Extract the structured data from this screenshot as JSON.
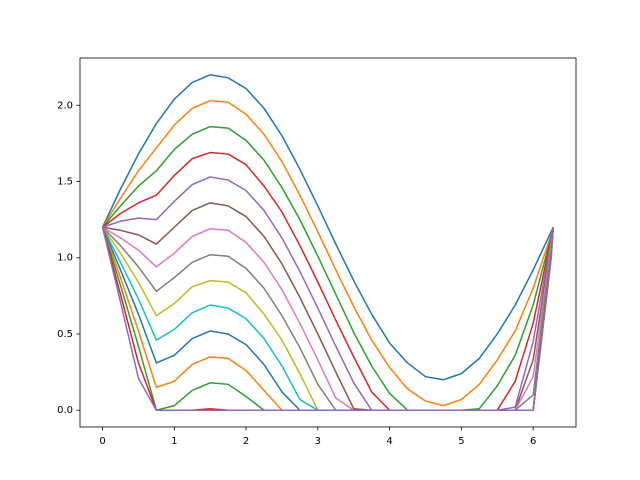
{
  "chart_data": {
    "type": "line",
    "x": [
      0,
      0.25,
      0.5,
      0.75,
      1,
      1.25,
      1.5,
      1.75,
      2,
      2.25,
      2.5,
      2.75,
      3,
      3.25,
      3.5,
      3.75,
      4,
      4.25,
      4.5,
      4.75,
      5,
      5.25,
      5.5,
      5.75,
      6,
      6.25,
      6.28
    ],
    "series": [
      {
        "color": "#1f77b4",
        "values": [
          1.2,
          1.45,
          1.68,
          1.88,
          2.04,
          2.15,
          2.2,
          2.18,
          2.11,
          1.98,
          1.8,
          1.58,
          1.34,
          1.09,
          0.85,
          0.63,
          0.44,
          0.31,
          0.22,
          0.2,
          0.24,
          0.34,
          0.5,
          0.69,
          0.92,
          1.17,
          1.2
        ]
      },
      {
        "color": "#ff7f0e",
        "values": [
          1.2,
          1.39,
          1.57,
          1.72,
          1.87,
          1.98,
          2.03,
          2.02,
          1.94,
          1.81,
          1.63,
          1.41,
          1.17,
          0.92,
          0.68,
          0.46,
          0.28,
          0.14,
          0.06,
          0.03,
          0.07,
          0.17,
          0.33,
          0.52,
          0.8,
          1.15,
          1.2
        ]
      },
      {
        "color": "#2ca02c",
        "values": [
          1.2,
          1.34,
          1.47,
          1.57,
          1.71,
          1.81,
          1.86,
          1.85,
          1.77,
          1.64,
          1.46,
          1.25,
          1.01,
          0.76,
          0.51,
          0.29,
          0.11,
          0,
          0,
          0,
          0,
          0.01,
          0.16,
          0.36,
          0.69,
          1.14,
          1.2
        ]
      },
      {
        "color": "#d62728",
        "values": [
          1.2,
          1.29,
          1.36,
          1.41,
          1.54,
          1.65,
          1.69,
          1.68,
          1.61,
          1.47,
          1.3,
          1.08,
          0.84,
          0.59,
          0.35,
          0.12,
          0,
          0,
          0,
          0,
          0,
          0,
          0,
          0.19,
          0.57,
          1.13,
          1.2
        ]
      },
      {
        "color": "#9467bd",
        "values": [
          1.2,
          1.24,
          1.26,
          1.25,
          1.37,
          1.48,
          1.53,
          1.51,
          1.44,
          1.31,
          1.13,
          0.91,
          0.67,
          0.42,
          0.18,
          0,
          0,
          0,
          0,
          0,
          0,
          0,
          0,
          0.02,
          0.45,
          1.12,
          1.2
        ]
      },
      {
        "color": "#8c564b",
        "values": [
          1.2,
          1.18,
          1.15,
          1.09,
          1.2,
          1.31,
          1.36,
          1.34,
          1.27,
          1.14,
          0.96,
          0.74,
          0.5,
          0.25,
          0.01,
          0,
          0,
          0,
          0,
          0,
          0,
          0,
          0,
          0,
          0.33,
          1.1,
          1.2
        ]
      },
      {
        "color": "#e377c2",
        "values": [
          1.2,
          1.13,
          1.05,
          0.94,
          1.03,
          1.14,
          1.19,
          1.18,
          1.1,
          0.97,
          0.79,
          0.57,
          0.33,
          0.08,
          0,
          0,
          0,
          0,
          0,
          0,
          0,
          0,
          0,
          0,
          0.22,
          1.09,
          1.2
        ]
      },
      {
        "color": "#7f7f7f",
        "values": [
          1.2,
          1.08,
          0.94,
          0.78,
          0.87,
          0.97,
          1.02,
          1.01,
          0.93,
          0.8,
          0.62,
          0.41,
          0.17,
          0,
          0,
          0,
          0,
          0,
          0,
          0,
          0,
          0,
          0,
          0,
          0.1,
          1.08,
          1.2
        ]
      },
      {
        "color": "#bcbd22",
        "values": [
          1.2,
          1.03,
          0.84,
          0.62,
          0.7,
          0.81,
          0.85,
          0.84,
          0.77,
          0.63,
          0.46,
          0.24,
          0,
          0,
          0,
          0,
          0,
          0,
          0,
          0,
          0,
          0,
          0,
          0,
          0,
          1.07,
          1.2
        ]
      },
      {
        "color": "#17becf",
        "values": [
          1.2,
          0.97,
          0.73,
          0.46,
          0.53,
          0.64,
          0.69,
          0.67,
          0.6,
          0.47,
          0.29,
          0.07,
          0,
          0,
          0,
          0,
          0,
          0,
          0,
          0,
          0,
          0,
          0,
          0,
          0,
          1.05,
          1.2
        ]
      },
      {
        "color": "#1f77b4",
        "values": [
          1.2,
          0.92,
          0.63,
          0.31,
          0.36,
          0.47,
          0.52,
          0.5,
          0.43,
          0.3,
          0.12,
          0,
          0,
          0,
          0,
          0,
          0,
          0,
          0,
          0,
          0,
          0,
          0,
          0,
          0,
          1.04,
          1.2
        ]
      },
      {
        "color": "#ff7f0e",
        "values": [
          1.2,
          0.87,
          0.52,
          0.15,
          0.19,
          0.3,
          0.35,
          0.34,
          0.26,
          0.13,
          0,
          0,
          0,
          0,
          0,
          0,
          0,
          0,
          0,
          0,
          0,
          0,
          0,
          0,
          0,
          1.03,
          1.2
        ]
      },
      {
        "color": "#2ca02c",
        "values": [
          1.2,
          0.82,
          0.42,
          0,
          0.03,
          0.13,
          0.18,
          0.17,
          0.09,
          0,
          0,
          0,
          0,
          0,
          0,
          0,
          0,
          0,
          0,
          0,
          0,
          0,
          0,
          0,
          0,
          1.02,
          1.2
        ]
      },
      {
        "color": "#d62728",
        "values": [
          1.2,
          0.76,
          0.31,
          0,
          0,
          0,
          0.01,
          0,
          0,
          0,
          0,
          0,
          0,
          0,
          0,
          0,
          0,
          0,
          0,
          0,
          0,
          0,
          0,
          0,
          0,
          1.0,
          1.2
        ]
      },
      {
        "color": "#9467bd",
        "values": [
          1.2,
          0.71,
          0.21,
          0,
          0,
          0,
          0,
          0,
          0,
          0,
          0,
          0,
          0,
          0,
          0,
          0,
          0,
          0,
          0,
          0,
          0,
          0,
          0,
          0,
          0,
          0.99,
          1.2
        ]
      }
    ],
    "xlim": [
      -0.314,
      6.597
    ],
    "xticks": [
      0,
      1,
      2,
      3,
      4,
      5,
      6
    ],
    "ylim": [
      -0.11,
      2.31
    ],
    "yticks": [
      {
        "value": 0,
        "label": "0.0"
      },
      0.5,
      {
        "value": 1,
        "label": "1.0"
      },
      1.5,
      {
        "value": 2,
        "label": "2.0"
      }
    ],
    "grid": false
  }
}
